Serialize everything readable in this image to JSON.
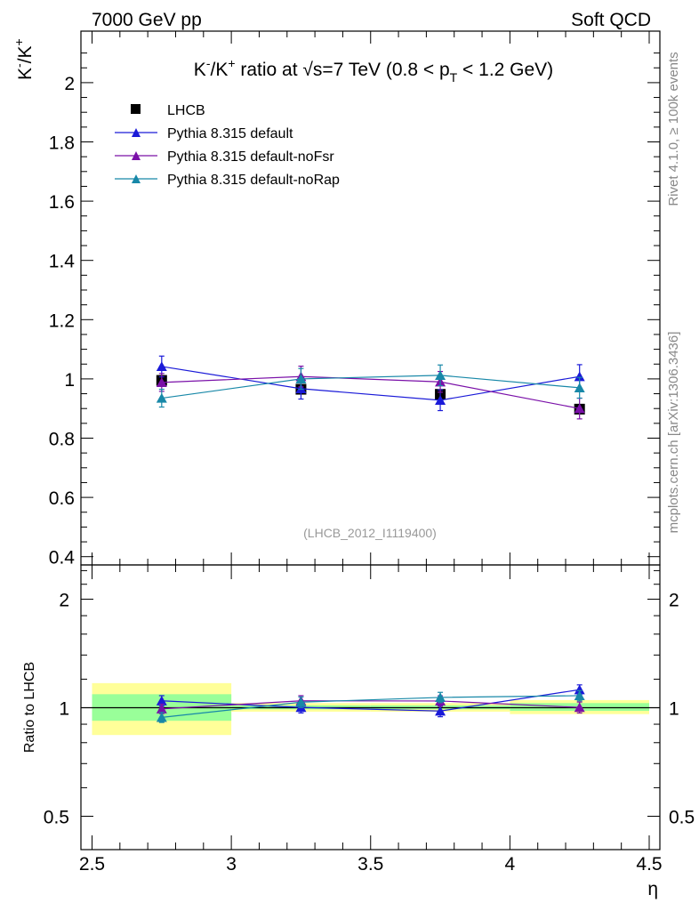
{
  "header": {
    "left": "7000 GeV pp",
    "right": "Soft QCD"
  },
  "side": {
    "rivet": "Rivet 4.1.0, ≥ 100k events",
    "source": "mcplots.cern.ch [arXiv:1306.3436]"
  },
  "watermark": "(LHCB_2012_I1119400)",
  "colors": {
    "lhcb": "#000000",
    "default": "#1a1ad8",
    "noFsr": "#7a10a8",
    "noRap": "#1888a8",
    "band_inner": "#99ff99",
    "band_outer": "#ffff99"
  },
  "chart_data": [
    {
      "type": "scatter",
      "panel": "main",
      "title": "K⁻/K⁺ ratio at √s=7 TeV (0.8 < p_T < 1.2 GeV)",
      "title_parts": {
        "pre": "K",
        "sup1": "-",
        "mid": "/K",
        "sup2": "+",
        "ratio": " ratio at ",
        "sqrt": "√",
        "s": "s=7 TeV (0.8 < p",
        "sub": "T",
        "post": " < 1.2 GeV)"
      },
      "ylabel": {
        "base": "K",
        "sup1": "-",
        "mid": "/K",
        "sup2": "+"
      },
      "xlim": [
        2.5,
        4.5
      ],
      "ylim": [
        0.38,
        2.18
      ],
      "yticks": [
        0.4,
        0.6,
        0.8,
        1,
        1.2,
        1.4,
        1.6,
        1.8,
        2
      ],
      "ytick_labels": [
        "0.4",
        "0.6",
        "0.8",
        "1",
        "1.2",
        "1.4",
        "1.6",
        "1.8",
        "2"
      ],
      "legend": [
        "LHCB",
        "Pythia 8.315 default",
        "Pythia 8.315 default-noFsr",
        "Pythia 8.315 default-noRap"
      ],
      "series": [
        {
          "key": "lhcb",
          "name": "LHCB",
          "marker": "square",
          "x": [
            2.75,
            3.25,
            3.75,
            4.25
          ],
          "y": [
            0.995,
            0.965,
            0.948,
            0.898
          ],
          "err": [
            0.015,
            0.015,
            0.015,
            0.015
          ]
        },
        {
          "key": "default",
          "name": "Pythia 8.315 default",
          "marker": "triangle",
          "x": [
            2.75,
            3.25,
            3.75,
            4.25
          ],
          "y": [
            1.042,
            0.967,
            0.928,
            1.008
          ],
          "err": [
            0.035,
            0.035,
            0.035,
            0.04
          ]
        },
        {
          "key": "noFsr",
          "name": "Pythia 8.315 default-noFsr",
          "marker": "triangle",
          "x": [
            2.75,
            3.25,
            3.75,
            4.25
          ],
          "y": [
            0.988,
            1.008,
            0.99,
            0.9
          ],
          "err": [
            0.03,
            0.035,
            0.035,
            0.035
          ]
        },
        {
          "key": "noRap",
          "name": "Pythia 8.315 default-noRap",
          "marker": "triangle",
          "x": [
            2.75,
            3.25,
            3.75,
            4.25
          ],
          "y": [
            0.935,
            1.0,
            1.012,
            0.97
          ],
          "err": [
            0.03,
            0.035,
            0.035,
            0.035
          ]
        }
      ]
    },
    {
      "type": "scatter",
      "panel": "ratio",
      "ylabel": "Ratio to LHCB",
      "xlabel": "η",
      "scale": "log",
      "xlim": [
        2.5,
        4.5
      ],
      "ylim": [
        0.4,
        2.6
      ],
      "xticks": [
        2.5,
        3,
        3.5,
        4,
        4.5
      ],
      "xtick_labels": [
        "2.5",
        "3",
        "3.5",
        "4",
        "4.5"
      ],
      "yticks": [
        0.5,
        1,
        2
      ],
      "ytick_labels": [
        "0.5",
        "1",
        "2"
      ],
      "bands": [
        {
          "x0": 2.5,
          "x1": 3.0,
          "inner": [
            0.92,
            1.09
          ],
          "outer": [
            0.84,
            1.17
          ]
        },
        {
          "x0": 3.0,
          "x1": 3.5,
          "inner": [
            0.99,
            1.015
          ],
          "outer": [
            0.975,
            1.03
          ]
        },
        {
          "x0": 3.5,
          "x1": 4.0,
          "inner": [
            0.99,
            1.015
          ],
          "outer": [
            0.975,
            1.03
          ]
        },
        {
          "x0": 4.0,
          "x1": 4.5,
          "inner": [
            0.98,
            1.03
          ],
          "outer": [
            0.96,
            1.05
          ]
        }
      ],
      "series": [
        {
          "key": "default",
          "x": [
            2.75,
            3.25,
            3.75,
            4.25
          ],
          "y": [
            1.045,
            1.002,
            0.979,
            1.122
          ],
          "err": [
            0.035,
            0.035,
            0.035,
            0.035
          ]
        },
        {
          "key": "noFsr",
          "x": [
            2.75,
            3.25,
            3.75,
            4.25
          ],
          "y": [
            0.993,
            1.045,
            1.044,
            1.002
          ],
          "err": [
            0.03,
            0.035,
            0.035,
            0.035
          ]
        },
        {
          "key": "noRap",
          "x": [
            2.75,
            3.25,
            3.75,
            4.25
          ],
          "y": [
            0.94,
            1.036,
            1.068,
            1.08
          ],
          "err": [
            0.03,
            0.035,
            0.035,
            0.035
          ]
        }
      ]
    }
  ]
}
